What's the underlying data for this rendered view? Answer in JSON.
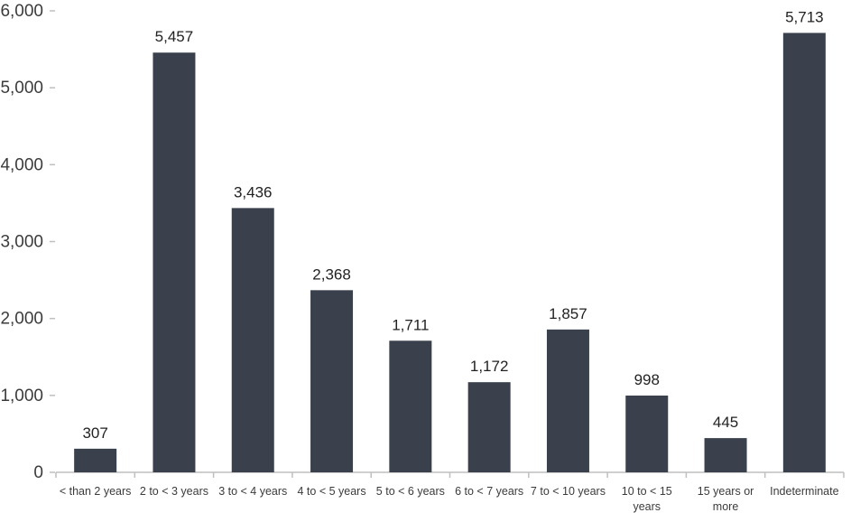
{
  "chart_data": {
    "type": "bar",
    "title": "",
    "xlabel": "",
    "ylabel": "",
    "ylim": [
      0,
      6000
    ],
    "yticks": [
      0,
      1000,
      2000,
      3000,
      4000,
      5000,
      6000
    ],
    "ytick_labels": [
      "0",
      "1,000",
      "2,000",
      "3,000",
      "4,000",
      "5,000",
      "6,000"
    ],
    "grid": false,
    "legend": "none",
    "categories": [
      [
        "< than 2 years"
      ],
      [
        "2 to < 3 years"
      ],
      [
        "3 to < 4 years"
      ],
      [
        "4 to < 5 years"
      ],
      [
        "5 to < 6 years"
      ],
      [
        "6 to < 7 years"
      ],
      [
        "7 to < 10 years"
      ],
      [
        "10 to < 15",
        "years"
      ],
      [
        "15 years or",
        "more"
      ],
      [
        "Indeterminate"
      ]
    ],
    "values": [
      307,
      5457,
      3436,
      2368,
      1711,
      1172,
      1857,
      998,
      445,
      5713
    ],
    "data_labels": [
      "307",
      "5,457",
      "3,436",
      "2,368",
      "1,711",
      "1,172",
      "1,857",
      "998",
      "445",
      "5,713"
    ],
    "colors": {
      "bar": "#3a414c",
      "axis": "#bfbfbf"
    }
  }
}
